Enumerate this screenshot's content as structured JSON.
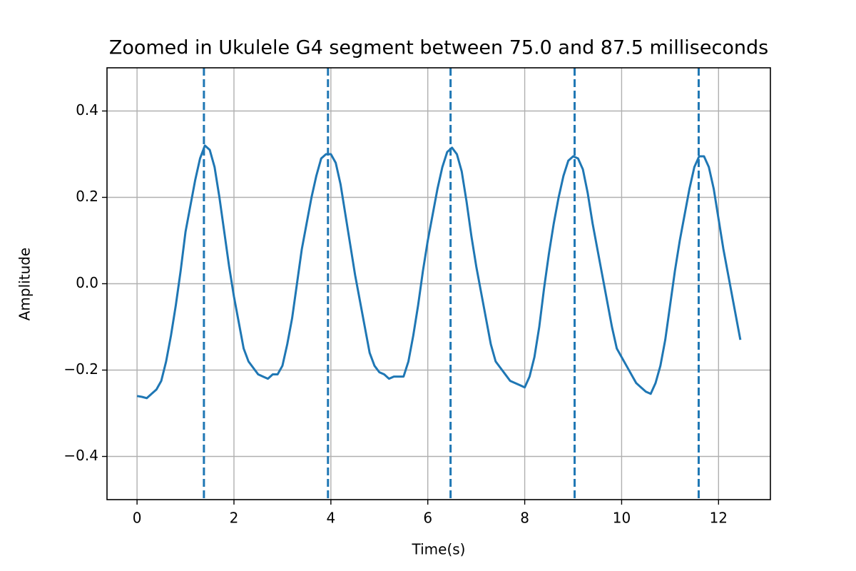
{
  "chart_data": {
    "type": "line",
    "title": "Zoomed in Ukulele G4 segment between 75.0 and 87.5 milliseconds",
    "xlabel": "Time(s)",
    "ylabel": "Amplitude",
    "color": "#1f77b4",
    "grid": true,
    "xlim": [
      -0.62,
      13.07
    ],
    "ylim": [
      -0.5,
      0.5
    ],
    "xticks": [
      0,
      2,
      4,
      6,
      8,
      10,
      12
    ],
    "yticks": [
      {
        "value": -0.4,
        "label": "−0.4"
      },
      {
        "value": -0.2,
        "label": "−0.2"
      },
      {
        "value": 0.0,
        "label": "0.0"
      },
      0.2,
      0.4
    ],
    "x": [
      0,
      0.1,
      0.2,
      0.3,
      0.4,
      0.5,
      0.6,
      0.7,
      0.8,
      0.9,
      1.0,
      1.1,
      1.2,
      1.3,
      1.4,
      1.5,
      1.6,
      1.7,
      1.8,
      1.9,
      2.0,
      2.1,
      2.2,
      2.3,
      2.4,
      2.5,
      2.6,
      2.7,
      2.8,
      2.9,
      3.0,
      3.1,
      3.2,
      3.3,
      3.4,
      3.5,
      3.6,
      3.7,
      3.8,
      3.9,
      4.0,
      4.1,
      4.2,
      4.3,
      4.4,
      4.5,
      4.6,
      4.7,
      4.8,
      4.9,
      5.0,
      5.1,
      5.2,
      5.3,
      5.4,
      5.5,
      5.6,
      5.7,
      5.8,
      5.9,
      6.0,
      6.1,
      6.2,
      6.3,
      6.4,
      6.5,
      6.6,
      6.7,
      6.8,
      6.9,
      7.0,
      7.1,
      7.2,
      7.3,
      7.4,
      7.5,
      7.6,
      7.7,
      7.8,
      7.9,
      8.0,
      8.1,
      8.2,
      8.3,
      8.4,
      8.5,
      8.6,
      8.7,
      8.8,
      8.9,
      9.0,
      9.1,
      9.2,
      9.3,
      9.4,
      9.5,
      9.6,
      9.7,
      9.8,
      9.9,
      10.0,
      10.1,
      10.2,
      10.3,
      10.4,
      10.5,
      10.6,
      10.7,
      10.8,
      10.9,
      11.0,
      11.1,
      11.2,
      11.3,
      11.4,
      11.5,
      11.6,
      11.7,
      11.8,
      11.9,
      12.0,
      12.1,
      12.2,
      12.3,
      12.4,
      12.45
    ],
    "values": [
      -0.26,
      -0.262,
      -0.265,
      -0.255,
      -0.245,
      -0.225,
      -0.18,
      -0.12,
      -0.05,
      0.03,
      0.12,
      0.18,
      0.24,
      0.29,
      0.32,
      0.31,
      0.27,
      0.2,
      0.12,
      0.04,
      -0.03,
      -0.09,
      -0.15,
      -0.18,
      -0.195,
      -0.21,
      -0.215,
      -0.22,
      -0.21,
      -0.21,
      -0.19,
      -0.14,
      -0.08,
      0.0,
      0.08,
      0.14,
      0.2,
      0.25,
      0.29,
      0.3,
      0.3,
      0.28,
      0.23,
      0.16,
      0.09,
      0.02,
      -0.04,
      -0.1,
      -0.16,
      -0.19,
      -0.205,
      -0.21,
      -0.22,
      -0.215,
      -0.215,
      -0.215,
      -0.18,
      -0.12,
      -0.05,
      0.03,
      0.1,
      0.16,
      0.22,
      0.27,
      0.305,
      0.315,
      0.3,
      0.26,
      0.19,
      0.11,
      0.04,
      -0.02,
      -0.08,
      -0.14,
      -0.18,
      -0.195,
      -0.21,
      -0.225,
      -0.23,
      -0.235,
      -0.24,
      -0.215,
      -0.17,
      -0.1,
      -0.01,
      0.07,
      0.14,
      0.2,
      0.25,
      0.285,
      0.295,
      0.29,
      0.265,
      0.21,
      0.14,
      0.08,
      0.02,
      -0.04,
      -0.1,
      -0.15,
      -0.17,
      -0.19,
      -0.21,
      -0.23,
      -0.24,
      -0.25,
      -0.255,
      -0.23,
      -0.19,
      -0.13,
      -0.05,
      0.03,
      0.1,
      0.16,
      0.22,
      0.27,
      0.295,
      0.295,
      0.27,
      0.22,
      0.15,
      0.08,
      0.02,
      -0.04,
      -0.1,
      -0.13
    ],
    "vlines": [
      1.38,
      3.94,
      6.47,
      9.03,
      11.59
    ]
  }
}
